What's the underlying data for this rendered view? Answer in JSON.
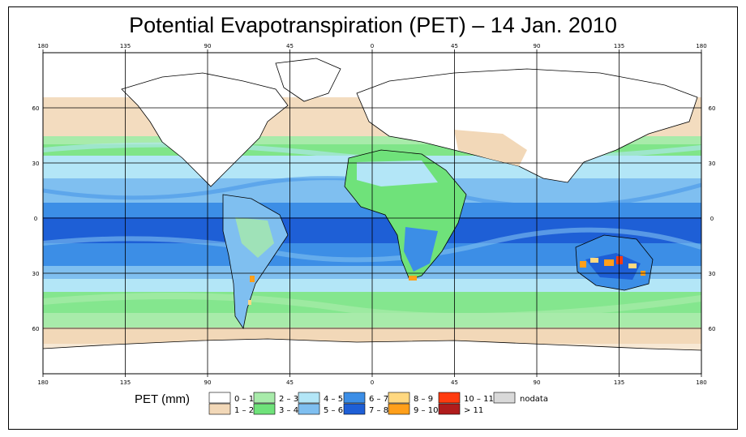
{
  "title": "Potential Evapotranspiration (PET) – 14 Jan. 2010",
  "lon_ticks": [
    "180",
    "135",
    "90",
    "45",
    "0",
    "45",
    "90",
    "135",
    "180"
  ],
  "lat_ticks": [
    "60",
    "30",
    "0",
    "30",
    "60"
  ],
  "legend": {
    "title": "PET (mm)",
    "items": [
      {
        "label": "0 – 1",
        "color": "#ffffff"
      },
      {
        "label": "1 – 2",
        "color": "#f2d8b8"
      },
      {
        "label": "2 – 3",
        "color": "#a8ebaa"
      },
      {
        "label": "3 – 4",
        "color": "#6fe27a"
      },
      {
        "label": "4 – 5",
        "color": "#b3e6f7"
      },
      {
        "label": "5 – 6",
        "color": "#7fbff0"
      },
      {
        "label": "6 – 7",
        "color": "#3c8ee6"
      },
      {
        "label": "7 – 8",
        "color": "#1e5fd6"
      },
      {
        "label": "8 – 9",
        "color": "#ffd880"
      },
      {
        "label": "9 – 10",
        "color": "#ff9f1a"
      },
      {
        "label": "10 – 11",
        "color": "#ff3b0f"
      },
      {
        "label": "> 11",
        "color": "#b01c1c"
      },
      {
        "label": "nodata",
        "color": "#d9d9d9"
      }
    ]
  }
}
